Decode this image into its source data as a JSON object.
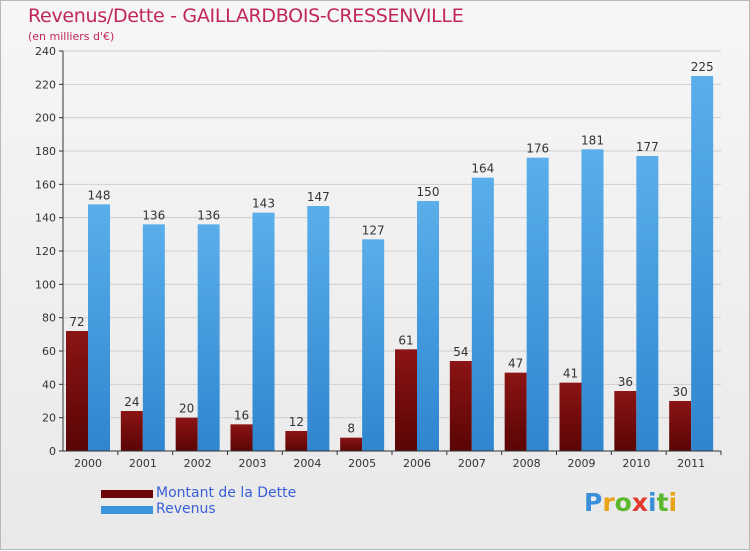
{
  "title": "Revenus/Dette - GAILLARDBOIS-CRESSENVILLE",
  "subtitle": "(en milliers d'€)",
  "colors": {
    "dette": "#7a0a0a",
    "revenus": "#3a94dc",
    "grid": "#cccccc",
    "title": "#c0265a"
  },
  "legend": {
    "dette_label": "Montant de la Dette",
    "revenus_label": "Revenus"
  },
  "logo": {
    "letters": [
      "P",
      "r",
      "o",
      "x",
      "i",
      "t",
      "i"
    ],
    "colors": [
      "#3a8fd8",
      "#e8a317",
      "#5cb82e",
      "#e23a2f",
      "#3a8fd8",
      "#5cb82e",
      "#e8a317"
    ]
  },
  "chart_data": {
    "type": "bar",
    "title": "Revenus/Dette - GAILLARDBOIS-CRESSENVILLE",
    "ylabel": "(en milliers d'€)",
    "ylim": [
      0,
      240
    ],
    "yticks": [
      0,
      20,
      40,
      60,
      80,
      100,
      120,
      140,
      160,
      180,
      200,
      220,
      240
    ],
    "grid": true,
    "legend_position": "bottom-left",
    "categories": [
      "2000",
      "2001",
      "2002",
      "2003",
      "2004",
      "2005",
      "2006",
      "2007",
      "2008",
      "2009",
      "2010",
      "2011"
    ],
    "series": [
      {
        "name": "Montant de la Dette",
        "values": [
          72,
          24,
          20,
          16,
          12,
          8,
          61,
          54,
          47,
          41,
          36,
          30
        ]
      },
      {
        "name": "Revenus",
        "values": [
          148,
          136,
          136,
          143,
          147,
          127,
          150,
          164,
          176,
          181,
          177,
          225
        ]
      }
    ]
  }
}
